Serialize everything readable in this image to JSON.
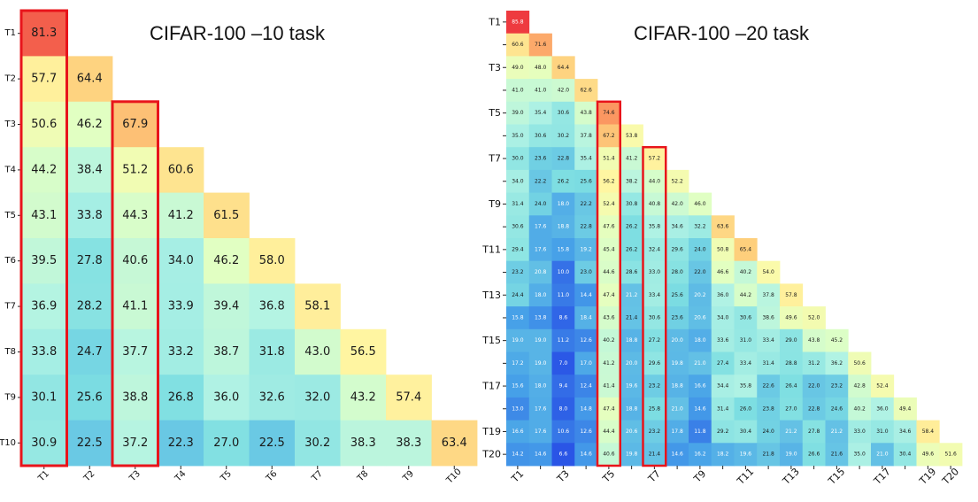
{
  "chart_data": [
    {
      "type": "heatmap",
      "title": "CIFAR-100 –10 task",
      "row_labels": [
        "T1",
        "T2",
        "T3",
        "T4",
        "T5",
        "T6",
        "T7",
        "T8",
        "T9",
        "T10"
      ],
      "col_labels": [
        "T1",
        "T2",
        "T3",
        "T4",
        "T5",
        "T6",
        "T7",
        "T8",
        "T9",
        "T10"
      ],
      "value_range": [
        6,
        86
      ],
      "highlighted_columns": [
        "T1",
        "T3"
      ],
      "values": [
        [
          81.3
        ],
        [
          57.7,
          64.4
        ],
        [
          50.6,
          46.2,
          67.9
        ],
        [
          44.2,
          38.4,
          51.2,
          60.6
        ],
        [
          43.1,
          33.8,
          44.3,
          41.2,
          61.5
        ],
        [
          39.5,
          27.8,
          40.6,
          34.0,
          46.2,
          58.0
        ],
        [
          36.9,
          28.2,
          41.1,
          33.9,
          39.4,
          36.8,
          58.1
        ],
        [
          33.8,
          24.7,
          37.7,
          33.2,
          38.7,
          31.8,
          43.0,
          56.5
        ],
        [
          30.1,
          25.6,
          38.8,
          26.8,
          36.0,
          32.6,
          32.0,
          43.2,
          57.4
        ],
        [
          30.9,
          22.5,
          37.2,
          22.3,
          27.0,
          22.5,
          30.2,
          38.3,
          38.3,
          63.4
        ]
      ]
    },
    {
      "type": "heatmap",
      "title": "CIFAR-100 –20 task",
      "row_labels": [
        "T1",
        "",
        "T3",
        "",
        "T5",
        "",
        "T7",
        "",
        "T9",
        "",
        "T11",
        "",
        "T13",
        "",
        "T15",
        "",
        "T17",
        "",
        "T19",
        "T20"
      ],
      "col_labels": [
        "T1",
        "",
        "T3",
        "",
        "T5",
        "",
        "T7",
        "",
        "T9",
        "",
        "T11",
        "",
        "T13",
        "",
        "T15",
        "",
        "T17",
        "",
        "T19",
        "T20"
      ],
      "value_range": [
        6,
        86
      ],
      "highlighted_columns": [
        "T5",
        "T7"
      ],
      "values": [
        [
          85.8
        ],
        [
          60.6,
          71.6
        ],
        [
          49.0,
          48.0,
          64.4
        ],
        [
          41.0,
          41.0,
          42.0,
          62.6
        ],
        [
          39.0,
          35.4,
          30.6,
          43.8,
          74.6
        ],
        [
          35.0,
          30.6,
          30.2,
          37.8,
          67.2,
          53.8
        ],
        [
          30.0,
          23.6,
          22.8,
          35.4,
          51.4,
          41.2,
          57.2
        ],
        [
          34.0,
          22.2,
          26.2,
          25.6,
          56.2,
          38.2,
          44.0,
          52.2
        ],
        [
          31.4,
          24.0,
          18.0,
          22.2,
          52.4,
          30.8,
          40.8,
          42.0,
          46.0
        ],
        [
          30.6,
          17.6,
          18.8,
          22.8,
          47.6,
          26.2,
          35.8,
          34.6,
          32.2,
          63.6
        ],
        [
          29.4,
          17.6,
          15.8,
          19.2,
          45.4,
          26.2,
          32.4,
          29.6,
          24.0,
          50.8,
          65.4
        ],
        [
          23.2,
          20.8,
          10.0,
          23.0,
          44.6,
          28.6,
          33.0,
          28.0,
          22.0,
          46.6,
          40.2,
          54.0
        ],
        [
          24.4,
          18.0,
          11.0,
          14.4,
          47.4,
          21.2,
          33.4,
          25.6,
          20.2,
          36.0,
          44.2,
          37.8,
          57.8
        ],
        [
          15.8,
          13.8,
          8.6,
          18.4,
          43.6,
          21.4,
          30.6,
          23.6,
          20.6,
          34.0,
          30.6,
          38.6,
          49.6,
          52.0
        ],
        [
          19.0,
          19.0,
          11.2,
          12.6,
          40.2,
          18.8,
          27.2,
          20.0,
          18.0,
          33.6,
          31.0,
          33.4,
          29.0,
          43.8,
          45.2
        ],
        [
          17.2,
          19.0,
          7.0,
          17.0,
          41.2,
          20.0,
          29.6,
          19.8,
          21.0,
          27.4,
          33.4,
          31.4,
          28.8,
          31.2,
          36.2,
          50.6
        ],
        [
          15.6,
          18.0,
          9.4,
          12.4,
          41.4,
          19.6,
          23.2,
          18.8,
          16.6,
          34.4,
          35.8,
          22.6,
          26.4,
          22.0,
          23.2,
          42.8,
          52.4
        ],
        [
          13.0,
          17.6,
          8.0,
          14.8,
          47.4,
          18.8,
          25.8,
          21.0,
          14.6,
          31.4,
          26.0,
          23.8,
          27.0,
          22.8,
          24.6,
          40.2,
          36.0,
          49.4
        ],
        [
          16.6,
          17.6,
          10.6,
          12.6,
          44.4,
          20.6,
          23.2,
          17.8,
          11.8,
          29.2,
          30.4,
          24.0,
          21.2,
          27.8,
          21.2,
          33.0,
          31.0,
          34.6,
          58.4
        ],
        [
          14.2,
          14.6,
          6.6,
          14.6,
          40.6,
          19.8,
          21.4,
          14.6,
          16.2,
          18.2,
          19.6,
          21.8,
          19.0,
          26.6,
          21.6,
          35.0,
          21.0,
          30.4,
          49.6,
          51.6
        ]
      ]
    }
  ]
}
